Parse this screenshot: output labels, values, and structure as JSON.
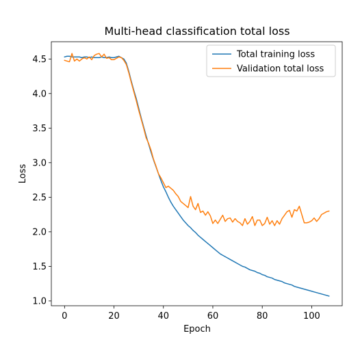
{
  "chart_data": {
    "type": "line",
    "title": "Multi-head classification total loss",
    "xlabel": "Epoch",
    "ylabel": "Loss",
    "xlim": [
      -5.35,
      112.35
    ],
    "ylim": [
      0.93,
      4.75
    ],
    "xticks": [
      0,
      20,
      40,
      60,
      80,
      100
    ],
    "yticks": [
      1.0,
      1.5,
      2.0,
      2.5,
      3.0,
      3.5,
      4.0,
      4.5
    ],
    "xtick_labels": [
      "0",
      "20",
      "40",
      "60",
      "80",
      "100"
    ],
    "ytick_labels": [
      "1.0",
      "1.5",
      "2.0",
      "2.5",
      "3.0",
      "3.5",
      "4.0",
      "4.5"
    ],
    "grid": false,
    "legend_position": "upper right",
    "x": [
      0,
      1,
      2,
      3,
      4,
      5,
      6,
      7,
      8,
      9,
      10,
      11,
      12,
      13,
      14,
      15,
      16,
      17,
      18,
      19,
      20,
      21,
      22,
      23,
      24,
      25,
      26,
      27,
      28,
      29,
      30,
      31,
      32,
      33,
      34,
      35,
      36,
      37,
      38,
      39,
      40,
      41,
      42,
      43,
      44,
      45,
      46,
      47,
      48,
      49,
      50,
      51,
      52,
      53,
      54,
      55,
      56,
      57,
      58,
      59,
      60,
      61,
      62,
      63,
      64,
      65,
      66,
      67,
      68,
      69,
      70,
      71,
      72,
      73,
      74,
      75,
      76,
      77,
      78,
      79,
      80,
      81,
      82,
      83,
      84,
      85,
      86,
      87,
      88,
      89,
      90,
      91,
      92,
      93,
      94,
      95,
      96,
      97,
      98,
      99,
      100,
      101,
      102,
      103,
      104,
      105,
      106,
      107
    ],
    "series": [
      {
        "name": "Total training loss",
        "color": "#1f77b4",
        "values": [
          4.53,
          4.54,
          4.54,
          4.53,
          4.53,
          4.53,
          4.53,
          4.52,
          4.53,
          4.53,
          4.52,
          4.53,
          4.52,
          4.52,
          4.52,
          4.53,
          4.52,
          4.52,
          4.53,
          4.52,
          4.52,
          4.53,
          4.54,
          4.52,
          4.5,
          4.44,
          4.32,
          4.18,
          4.05,
          3.93,
          3.79,
          3.65,
          3.52,
          3.39,
          3.27,
          3.15,
          3.04,
          2.94,
          2.84,
          2.74,
          2.65,
          2.58,
          2.5,
          2.43,
          2.37,
          2.32,
          2.27,
          2.22,
          2.17,
          2.13,
          2.09,
          2.06,
          2.02,
          1.99,
          1.95,
          1.92,
          1.89,
          1.86,
          1.83,
          1.8,
          1.77,
          1.74,
          1.71,
          1.68,
          1.66,
          1.64,
          1.62,
          1.6,
          1.58,
          1.56,
          1.54,
          1.52,
          1.5,
          1.49,
          1.47,
          1.45,
          1.44,
          1.43,
          1.41,
          1.4,
          1.38,
          1.37,
          1.35,
          1.34,
          1.33,
          1.31,
          1.3,
          1.29,
          1.28,
          1.26,
          1.25,
          1.24,
          1.23,
          1.21,
          1.2,
          1.19,
          1.18,
          1.17,
          1.16,
          1.15,
          1.14,
          1.13,
          1.12,
          1.11,
          1.1,
          1.09,
          1.08,
          1.07
        ]
      },
      {
        "name": "Validation total loss",
        "color": "#ff7f0e",
        "values": [
          4.48,
          4.47,
          4.46,
          4.58,
          4.47,
          4.5,
          4.47,
          4.5,
          4.52,
          4.5,
          4.53,
          4.49,
          4.55,
          4.57,
          4.58,
          4.53,
          4.57,
          4.51,
          4.52,
          4.49,
          4.49,
          4.51,
          4.53,
          4.52,
          4.48,
          4.42,
          4.3,
          4.16,
          4.03,
          3.9,
          3.76,
          3.63,
          3.5,
          3.36,
          3.28,
          3.18,
          3.05,
          2.95,
          2.84,
          2.78,
          2.71,
          2.64,
          2.66,
          2.63,
          2.6,
          2.55,
          2.51,
          2.44,
          2.41,
          2.38,
          2.35,
          2.51,
          2.37,
          2.32,
          2.41,
          2.28,
          2.3,
          2.24,
          2.29,
          2.23,
          2.12,
          2.17,
          2.12,
          2.18,
          2.24,
          2.15,
          2.19,
          2.2,
          2.14,
          2.19,
          2.15,
          2.13,
          2.09,
          2.19,
          2.11,
          2.15,
          2.22,
          2.09,
          2.17,
          2.17,
          2.09,
          2.12,
          2.21,
          2.11,
          2.16,
          2.09,
          2.16,
          2.11,
          2.19,
          2.24,
          2.29,
          2.31,
          2.21,
          2.32,
          2.3,
          2.37,
          2.25,
          2.13,
          2.13,
          2.14,
          2.16,
          2.2,
          2.15,
          2.19,
          2.25,
          2.27,
          2.29,
          2.3
        ]
      }
    ]
  }
}
